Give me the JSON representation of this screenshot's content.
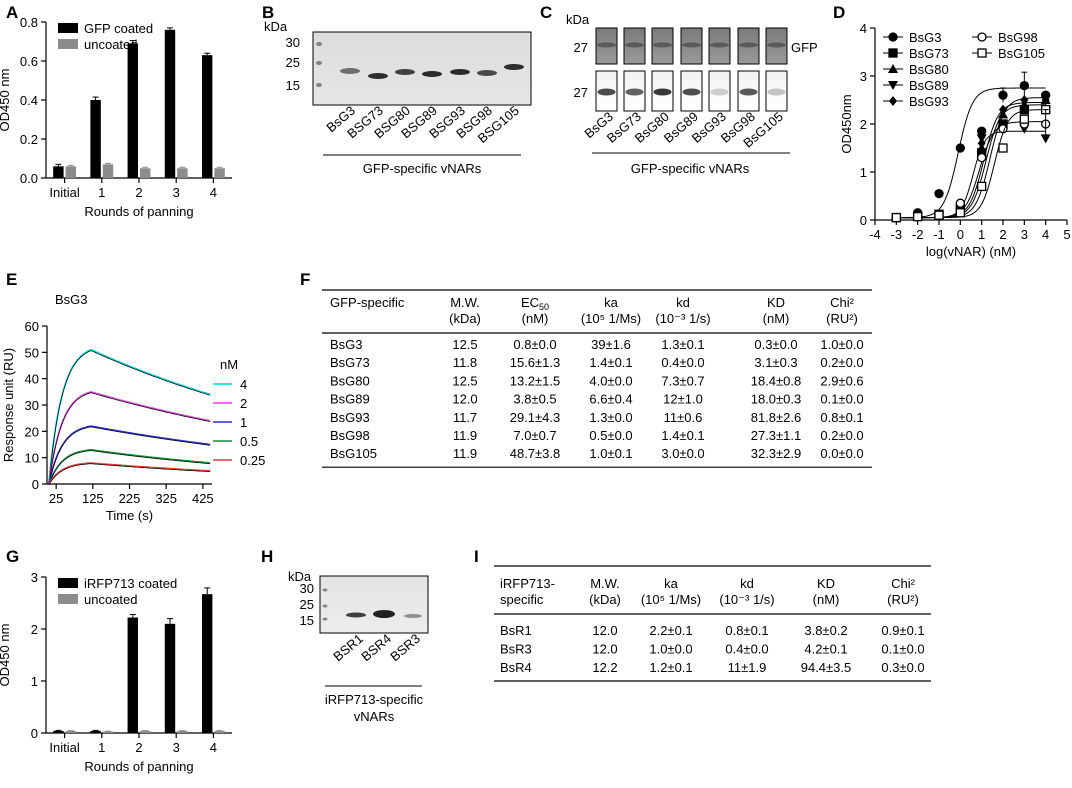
{
  "panel_labels": [
    "A",
    "B",
    "C",
    "D",
    "E",
    "F",
    "G",
    "H",
    "I"
  ],
  "chart_data": [
    {
      "id": "A",
      "type": "bar",
      "categories": [
        "Initial",
        "1",
        "2",
        "3",
        "4"
      ],
      "series": [
        {
          "name": "GFP coated",
          "values": [
            0.06,
            0.4,
            0.69,
            0.76,
            0.63
          ],
          "errors": [
            0.01,
            0.015,
            0.015,
            0.01,
            0.01
          ]
        },
        {
          "name": "uncoated",
          "values": [
            0.06,
            0.07,
            0.05,
            0.05,
            0.05
          ],
          "errors": [
            0.005,
            0.005,
            0.005,
            0.005,
            0.005
          ]
        }
      ],
      "colors": [
        "#000000",
        "#8c8c8c"
      ],
      "xlabel": "Rounds of panning",
      "ylabel": "OD450 nm",
      "ylim": [
        0,
        0.8
      ],
      "yticks": [
        "0.0",
        "0.2",
        "0.4",
        "0.6",
        "0.8"
      ]
    },
    {
      "id": "D",
      "type": "scatter",
      "xlabel": "log(vNAR) (nM)",
      "ylabel": "OD450nm",
      "xlim": [
        -4,
        5
      ],
      "ylim": [
        0,
        4
      ],
      "xticks": [
        "-4",
        "-3",
        "-2",
        "-1",
        "0",
        "1",
        "2",
        "3",
        "4",
        "5"
      ],
      "yticks": [
        "0",
        "1",
        "2",
        "3",
        "4"
      ],
      "x": [
        -3,
        -2,
        -1,
        0,
        1,
        2,
        3,
        4
      ],
      "series": [
        {
          "name": "BsG3",
          "marker": "circle",
          "values": [
            0.05,
            0.15,
            0.55,
            1.5,
            1.85,
            2.6,
            2.8,
            2.6
          ],
          "fit": {
            "bottom": 0.05,
            "top": 2.75,
            "logec50": -0.1,
            "hill": 1.3
          }
        },
        {
          "name": "BsG73",
          "marker": "square",
          "values": [
            0.05,
            0.08,
            0.12,
            0.25,
            1.4,
            2.0,
            2.3,
            2.3
          ],
          "fit": {
            "bottom": 0.05,
            "top": 2.4,
            "logec50": 1.2,
            "hill": 1.3
          }
        },
        {
          "name": "BsG80",
          "marker": "triangle",
          "values": [
            0.05,
            0.07,
            0.1,
            0.2,
            1.5,
            2.2,
            2.4,
            2.5
          ],
          "fit": {
            "bottom": 0.05,
            "top": 2.45,
            "logec50": 1.1,
            "hill": 1.3
          }
        },
        {
          "name": "BsG89",
          "marker": "triangle-down",
          "values": [
            0.05,
            0.06,
            0.08,
            0.2,
            1.7,
            2.0,
            1.9,
            1.7
          ],
          "fit": {
            "bottom": 0.05,
            "top": 1.85,
            "logec50": 0.6,
            "hill": 1.6
          }
        },
        {
          "name": "BsG93",
          "marker": "diamond",
          "values": [
            0.05,
            0.07,
            0.1,
            0.3,
            1.6,
            2.3,
            2.5,
            2.5
          ],
          "fit": {
            "bottom": 0.05,
            "top": 2.55,
            "logec50": 1.4,
            "hill": 1.3
          }
        },
        {
          "name": "BsG98",
          "marker": "open-circle",
          "values": [
            0.05,
            0.08,
            0.12,
            0.35,
            1.3,
            1.9,
            2.0,
            2.0
          ],
          "fit": {
            "bottom": 0.05,
            "top": 2.05,
            "logec50": 0.9,
            "hill": 1.3
          }
        },
        {
          "name": "BsG105",
          "marker": "open-square",
          "values": [
            0.05,
            0.07,
            0.1,
            0.15,
            0.7,
            1.5,
            2.1,
            2.3
          ],
          "fit": {
            "bottom": 0.05,
            "top": 2.3,
            "logec50": 1.6,
            "hill": 1.4
          }
        }
      ]
    },
    {
      "id": "E",
      "type": "line",
      "title": "BsG3",
      "xlabel": "Time (s)",
      "ylabel": "Response unit (RU)",
      "xlim": [
        0,
        450
      ],
      "ylim": [
        0,
        60
      ],
      "xticks": [
        "25",
        "125",
        "225",
        "325",
        "425"
      ],
      "yticks": [
        "0",
        "10",
        "20",
        "30",
        "40",
        "50",
        "60"
      ],
      "legend_title": "nM",
      "association_end": 120,
      "series": [
        {
          "name": "4",
          "color": "#00d2d2",
          "peak": 51,
          "end": 34
        },
        {
          "name": "2",
          "color": "#e040e0",
          "peak": 35,
          "end": 24
        },
        {
          "name": "1",
          "color": "#2f2fd0",
          "peak": 22,
          "end": 15
        },
        {
          "name": "0.5",
          "color": "#1a8a3a",
          "peak": 13,
          "end": 8
        },
        {
          "name": "0.25",
          "color": "#e03a3a",
          "peak": 8,
          "end": 5
        }
      ]
    },
    {
      "id": "G",
      "type": "bar",
      "categories": [
        "Initial",
        "1",
        "2",
        "3",
        "4"
      ],
      "series": [
        {
          "name": "iRFP713 coated",
          "values": [
            0.04,
            0.04,
            2.22,
            2.1,
            2.67
          ],
          "errors": [
            0.01,
            0.01,
            0.06,
            0.1,
            0.12
          ]
        },
        {
          "name": "uncoated",
          "values": [
            0.04,
            0.03,
            0.04,
            0.04,
            0.04
          ],
          "errors": [
            0.005,
            0.005,
            0.005,
            0.005,
            0.005
          ]
        }
      ],
      "colors": [
        "#000000",
        "#8c8c8c"
      ],
      "xlabel": "Rounds of panning",
      "ylabel": "OD450 nm",
      "ylim": [
        0,
        3
      ],
      "yticks": [
        "0",
        "1",
        "2",
        "3"
      ]
    }
  ],
  "gelB": {
    "unit": "kDa",
    "markers": [
      "30",
      "25",
      "15"
    ],
    "lanes": [
      "BsG3",
      "BSG73",
      "BSG80",
      "BSG89",
      "BSG93",
      "BSG98",
      "BSG105"
    ],
    "caption": "GFP-specific vNARs"
  },
  "gelC": {
    "unit": "kDa",
    "row_markers": [
      "27",
      "27"
    ],
    "right_label": "GFP",
    "lanes": [
      "BsG3",
      "BsG73",
      "BsG80",
      "BsG89",
      "BsG93",
      "BsG98",
      "BsG105"
    ],
    "caption": "GFP-specific vNARs"
  },
  "gelH": {
    "unit": "kDa",
    "markers": [
      "30",
      "25",
      "15"
    ],
    "lanes": [
      "BSR1",
      "BSR4",
      "BSR3"
    ],
    "caption_line1": "iRFP713-specific",
    "caption_line2": "vNARs"
  },
  "tableF": {
    "headers": [
      [
        "GFP-specific",
        ""
      ],
      [
        "M.W.",
        "(kDa)"
      ],
      [
        "EC",
        "(nM)"
      ],
      [
        "ka",
        "(10⁵ 1/Ms)"
      ],
      [
        "kd",
        "(10⁻³ 1/s)"
      ],
      [
        "KD",
        "(nM)"
      ],
      [
        "Chi²",
        "(RU²)"
      ]
    ],
    "ec_subscript": "50",
    "rows": [
      [
        "BsG3",
        "12.5",
        "0.8±0.0",
        "39±1.6",
        "1.3±0.1",
        "0.3±0.0",
        "1.0±0.0"
      ],
      [
        "BsG73",
        "11.8",
        "15.6±1.3",
        "1.4±0.1",
        "0.4±0.0",
        "3.1±0.3",
        "0.2±0.0"
      ],
      [
        "BsG80",
        "12.5",
        "13.2±1.5",
        "4.0±0.0",
        "7.3±0.7",
        "18.4±0.8",
        "2.9±0.6"
      ],
      [
        "BsG89",
        "12.0",
        "3.8±0.5",
        "6.6±0.4",
        "12±1.0",
        "18.0±0.3",
        "0.1±0.0"
      ],
      [
        "BsG93",
        "11.7",
        "29.1±4.3",
        "1.3±0.0",
        "11±0.6",
        "81.8±2.6",
        "0.8±0.1"
      ],
      [
        "BsG98",
        "11.9",
        "7.0±0.7",
        "0.5±0.0",
        "1.4±0.1",
        "27.3±1.1",
        "0.2±0.0"
      ],
      [
        "BsG105",
        "11.9",
        "48.7±3.8",
        "1.0±0.1",
        "3.0±0.0",
        "32.3±2.9",
        "0.0±0.0"
      ]
    ]
  },
  "tableI": {
    "headers": [
      [
        "iRFP713-",
        "specific"
      ],
      [
        "M.W.",
        "(kDa)"
      ],
      [
        "ka",
        "(10⁵ 1/Ms)"
      ],
      [
        "kd",
        "(10⁻³ 1/s)"
      ],
      [
        "KD",
        "(nM)"
      ],
      [
        "Chi²",
        "(RU²)"
      ]
    ],
    "rows": [
      [
        "BsR1",
        "12.0",
        "2.2±0.1",
        "0.8±0.1",
        "3.8±0.2",
        "0.9±0.1"
      ],
      [
        "BsR3",
        "12.0",
        "1.0±0.0",
        "0.4±0.0",
        "4.2±0.1",
        "0.1±0.0"
      ],
      [
        "BsR4",
        "12.2",
        "1.2±0.1",
        "11±1.9",
        "94.4±3.5",
        "0.3±0.0"
      ]
    ]
  }
}
